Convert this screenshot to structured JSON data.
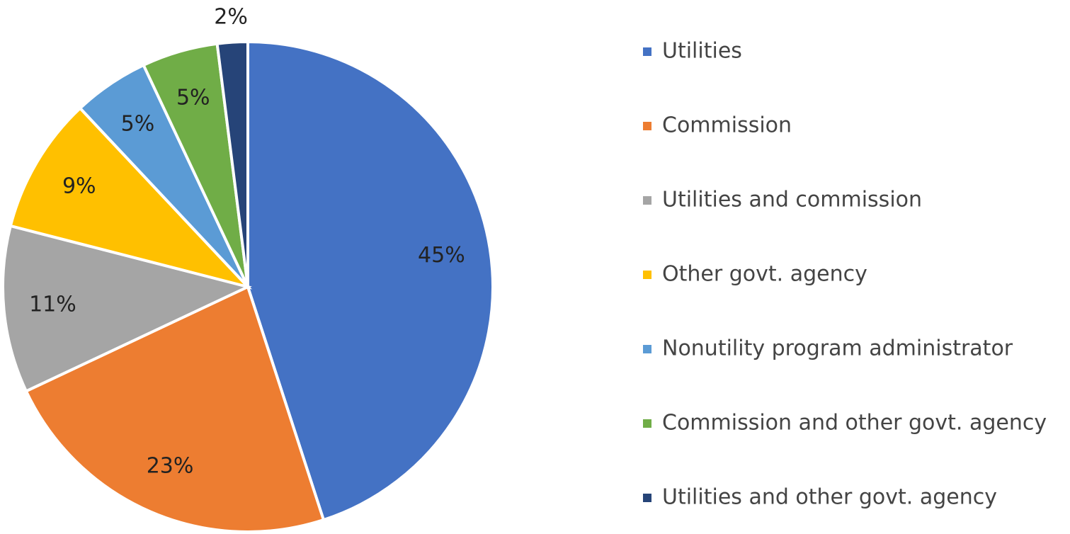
{
  "chart_data": {
    "type": "pie",
    "categories": [
      "Utilities",
      "Commission",
      "Utilities and commission",
      "Other govt. agency",
      "Nonutility program administrator",
      "Commission and other govt. agency",
      "Utilities and other govt. agency"
    ],
    "values": [
      45,
      23,
      11,
      9,
      5,
      5,
      2
    ],
    "value_labels": [
      "45%",
      "23%",
      "11%",
      "9%",
      "5%",
      "5%",
      "2%"
    ],
    "colors": [
      "#4472c4",
      "#ed7d31",
      "#a5a5a5",
      "#ffc000",
      "#5b9bd5",
      "#70ad47",
      "#264478"
    ],
    "legend": "right"
  }
}
